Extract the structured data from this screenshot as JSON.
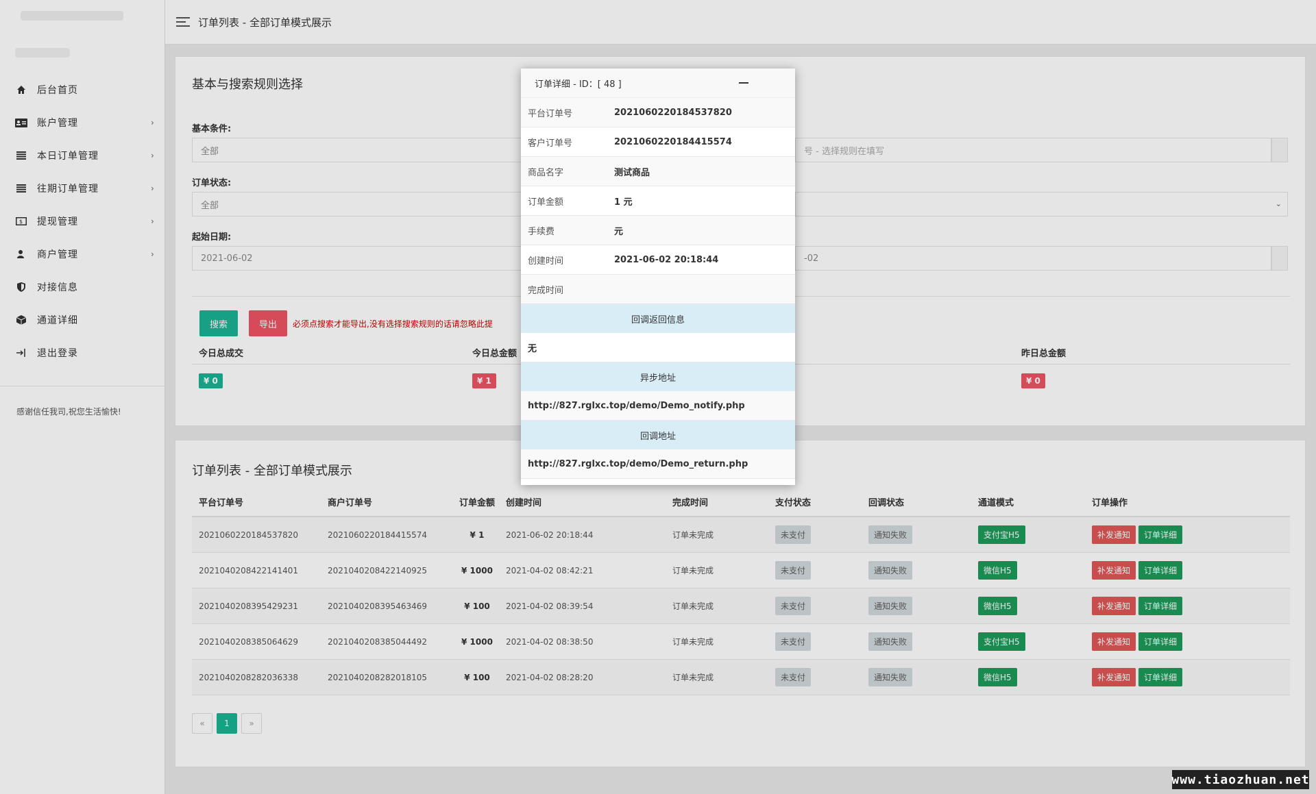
{
  "sidebar": {
    "menu": [
      {
        "icon": "home-icon",
        "label": "后台首页",
        "chev": ""
      },
      {
        "icon": "id-card-icon",
        "label": "账户管理",
        "chev": "›"
      },
      {
        "icon": "list-icon",
        "label": "本日订单管理",
        "chev": "›"
      },
      {
        "icon": "list-icon",
        "label": "往期订单管理",
        "chev": "›"
      },
      {
        "icon": "money-icon",
        "label": "提现管理",
        "chev": "›"
      },
      {
        "icon": "user-icon",
        "label": "商户管理",
        "chev": "›"
      },
      {
        "icon": "shield-icon",
        "label": "对接信息",
        "chev": ""
      },
      {
        "icon": "cube-icon",
        "label": "通道详细",
        "chev": ""
      },
      {
        "icon": "logout-icon",
        "label": "退出登录",
        "chev": ""
      }
    ],
    "footer": "感谢信任我司,祝您生活愉快!"
  },
  "topbar": {
    "title": "订单列表 - 全部订单模式展示"
  },
  "search_panel": {
    "title": "基本与搜索规则选择",
    "basic_label": "基本条件:",
    "basic_value": "全部",
    "rule_placeholder": "号 - 选择规则在填写",
    "status_label": "订单状态:",
    "status_value": "全部",
    "date_label": "起始日期:",
    "start_date": "2021-06-02",
    "end_date": "-02",
    "search_btn": "搜索",
    "export_btn": "导出",
    "warning": "必须点搜索才能导出,没有选择搜索规则的话请忽略此提",
    "stats": [
      {
        "label": "今日总成交",
        "value": "¥ 0",
        "color": "teal"
      },
      {
        "label": "今日总金额",
        "value": "¥ 1",
        "color": "red"
      },
      {
        "label": "昨日总金额",
        "value": "¥ 0",
        "color": "red"
      }
    ]
  },
  "orders_panel": {
    "title": "订单列表 - 全部订单模式展示",
    "headers": [
      "平台订单号",
      "商户订单号",
      "订单金额",
      "创建时间",
      "完成时间",
      "支付状态",
      "回调状态",
      "通道模式",
      "订单操作"
    ],
    "rows": [
      {
        "pid": "2021060220184537820",
        "mid": "2021060220184415574",
        "amount": "¥ 1",
        "created": "2021-06-02 20:18:44",
        "done": "订单未完成",
        "pay": "未支付",
        "cb": "通知失败",
        "channel": "支付宝H5",
        "op1": "补发通知",
        "op2": "订单详细"
      },
      {
        "pid": "2021040208422141401",
        "mid": "2021040208422140925",
        "amount": "¥ 1000",
        "created": "2021-04-02 08:42:21",
        "done": "订单未完成",
        "pay": "未支付",
        "cb": "通知失败",
        "channel": "微信H5",
        "op1": "补发通知",
        "op2": "订单详细"
      },
      {
        "pid": "2021040208395429231",
        "mid": "2021040208395463469",
        "amount": "¥ 100",
        "created": "2021-04-02 08:39:54",
        "done": "订单未完成",
        "pay": "未支付",
        "cb": "通知失败",
        "channel": "微信H5",
        "op1": "补发通知",
        "op2": "订单详细"
      },
      {
        "pid": "2021040208385064629",
        "mid": "2021040208385044492",
        "amount": "¥ 1000",
        "created": "2021-04-02 08:38:50",
        "done": "订单未完成",
        "pay": "未支付",
        "cb": "通知失败",
        "channel": "支付宝H5",
        "op1": "补发通知",
        "op2": "订单详细"
      },
      {
        "pid": "2021040208282036338",
        "mid": "2021040208282018105",
        "amount": "¥ 100",
        "created": "2021-04-02 08:28:20",
        "done": "订单未完成",
        "pay": "未支付",
        "cb": "通知失败",
        "channel": "微信H5",
        "op1": "补发通知",
        "op2": "订单详细"
      }
    ],
    "pager": {
      "prev": "«",
      "current": "1",
      "next": "»"
    }
  },
  "modal": {
    "title": "订单详细 - ID：[ 48 ]",
    "rows": [
      {
        "k": "平台订单号",
        "v": "2021060220184537820"
      },
      {
        "k": "客户订单号",
        "v": "2021060220184415574"
      },
      {
        "k": "商品名字",
        "v": "测试商品"
      },
      {
        "k": "订单金额",
        "v": "1 元"
      },
      {
        "k": "手续费",
        "v": "元"
      },
      {
        "k": "创建时间",
        "v": "2021-06-02 20:18:44"
      },
      {
        "k": "完成时间",
        "v": ""
      }
    ],
    "callback_header": "回调返回信息",
    "callback_value": "无",
    "notify_header": "异步地址",
    "notify_value": "http://827.rglxc.top/demo/Demo_notify.php",
    "return_header": "回调地址",
    "return_value": "http://827.rglxc.top/demo/Demo_return.php"
  },
  "watermark": "www.tiaozhuan.net",
  "colors": {
    "teal": "#1ab394",
    "red": "#ed5565",
    "green": "#1c9a5a",
    "modal_section": "#d9edf7"
  }
}
